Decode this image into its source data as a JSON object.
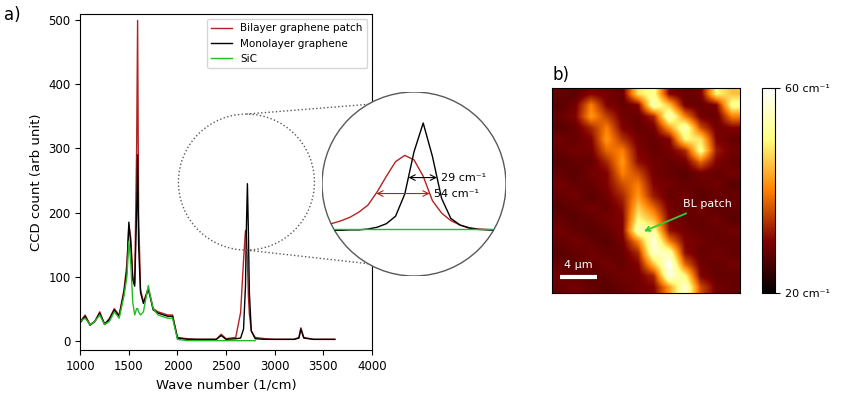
{
  "chart_data": [
    {
      "type": "line",
      "title": "a)",
      "xlabel": "Wave number (1/cm)",
      "ylabel": "CCD count (arb unit)",
      "x": [
        1000,
        1050,
        1100,
        1150,
        1200,
        1250,
        1300,
        1350,
        1400,
        1450,
        1480,
        1500,
        1520,
        1540,
        1560,
        1580,
        1590,
        1600,
        1620,
        1650,
        1700,
        1720,
        1750,
        1800,
        1900,
        1950,
        2000,
        2100,
        2200,
        2300,
        2400,
        2450,
        2500,
        2600,
        2650,
        2680,
        2700,
        2710,
        2720,
        2730,
        2740,
        2760,
        2800,
        2900,
        3000,
        3100,
        3200,
        3250,
        3270,
        3300,
        3400,
        3500,
        3620
      ],
      "xlim": [
        1000,
        4000
      ],
      "xticks": [
        1000,
        1500,
        2000,
        2500,
        3000,
        3500,
        4000
      ],
      "ylim": [
        -15,
        510
      ],
      "yticks": [
        0,
        100,
        200,
        300,
        400,
        500
      ],
      "legend": "upper right",
      "series": [
        {
          "name": "Bilayer graphene patch",
          "color": "#b22222",
          "values": [
            30,
            40,
            25,
            30,
            45,
            25,
            35,
            50,
            40,
            80,
            120,
            180,
            160,
            100,
            90,
            300,
            500,
            200,
            80,
            60,
            82,
            70,
            50,
            45,
            40,
            40,
            5,
            3,
            2,
            2,
            2,
            10,
            3,
            5,
            44,
            125,
            172,
            162,
            125,
            70,
            42,
            15,
            5,
            3,
            2,
            2,
            2,
            5,
            20,
            5,
            2,
            2,
            2
          ]
        },
        {
          "name": "Monolayer graphene",
          "color": "#000000",
          "values": [
            28,
            38,
            24,
            30,
            43,
            26,
            33,
            48,
            38,
            75,
            110,
            185,
            150,
            95,
            85,
            200,
            290,
            150,
            75,
            58,
            80,
            68,
            48,
            43,
            38,
            38,
            4,
            2,
            2,
            2,
            2,
            8,
            2,
            3,
            4,
            18,
            85,
            180,
            245,
            170,
            75,
            15,
            3,
            2,
            2,
            2,
            2,
            4,
            18,
            4,
            2,
            2,
            2
          ]
        },
        {
          "name": "SiC",
          "color": "#22bb22",
          "values": [
            30,
            35,
            25,
            30,
            40,
            25,
            30,
            45,
            35,
            70,
            100,
            155,
            120,
            60,
            40,
            50,
            50,
            45,
            40,
            45,
            86,
            70,
            50,
            40,
            35,
            35,
            2,
            0,
            0,
            0,
            0,
            0,
            0,
            0,
            0,
            0,
            0,
            0,
            0,
            0,
            0,
            0,
            0,
            null,
            null,
            null,
            null,
            null,
            null,
            null,
            null,
            null,
            null
          ]
        }
      ]
    },
    {
      "type": "line",
      "tick_labels": false,
      "x": [
        2600,
        2610,
        2620,
        2630,
        2640,
        2650,
        2660,
        2670,
        2680,
        2690,
        2700,
        2710,
        2720,
        2730,
        2740,
        2750,
        2760,
        2770,
        2780,
        2790,
        2800,
        2810,
        2820
      ],
      "xlim": [
        2610,
        2810
      ],
      "ylim": [
        -100,
        315
      ],
      "series": [
        {
          "name": "Bilayer graphene patch",
          "color": "#b22222",
          "values": [
            10,
            13,
            18,
            24,
            32,
            44,
            60,
            90,
            125,
            158,
            172,
            162,
            125,
            70,
            42,
            25,
            15,
            9,
            6,
            5,
            4,
            3,
            3
          ]
        },
        {
          "name": "Monolayer graphene",
          "color": "#000000",
          "values": [
            3,
            3,
            3,
            3,
            4,
            4,
            6,
            10,
            18,
            35,
            85,
            180,
            245,
            170,
            75,
            30,
            15,
            8,
            5,
            4,
            3,
            2,
            2
          ]
        },
        {
          "name": "SiC",
          "color": "#22bb22",
          "values": [
            5,
            5,
            5,
            5,
            5,
            5,
            5,
            5,
            5,
            5,
            5,
            5,
            5,
            5,
            5,
            5,
            5,
            5,
            5,
            5,
            5,
            5,
            5
          ]
        }
      ],
      "annotations": [
        {
          "text": "29 cm⁻¹",
          "series": "Monolayer graphene",
          "x": [
            2704,
            2735
          ],
          "y": 122
        },
        {
          "text": "54 cm⁻¹",
          "series": "Bilayer graphene patch",
          "x": [
            2669,
            2727
          ],
          "y": 86
        }
      ]
    },
    {
      "type": "heatmap",
      "title": "b)",
      "tick_labels": false,
      "xlim": [
        0,
        20
      ],
      "ylim": [
        22,
        0
      ],
      "cells": [
        [
          28,
          27,
          30,
          29,
          28,
          48,
          52,
          30,
          28,
          29,
          50,
          45
        ],
        [
          27,
          29,
          40,
          30,
          28,
          30,
          55,
          45,
          29,
          28,
          30,
          52
        ],
        [
          28,
          30,
          42,
          35,
          29,
          28,
          33,
          56,
          40,
          29,
          28,
          40
        ],
        [
          27,
          28,
          33,
          40,
          30,
          28,
          29,
          42,
          55,
          36,
          29,
          30
        ],
        [
          29,
          28,
          30,
          42,
          34,
          29,
          28,
          30,
          50,
          48,
          30,
          28
        ],
        [
          28,
          29,
          29,
          38,
          40,
          30,
          28,
          29,
          33,
          52,
          32,
          29
        ],
        [
          27,
          28,
          28,
          33,
          42,
          31,
          29,
          28,
          29,
          38,
          30,
          28
        ],
        [
          28,
          27,
          29,
          30,
          40,
          36,
          29,
          28,
          27,
          29,
          28,
          29
        ],
        [
          29,
          28,
          28,
          30,
          36,
          40,
          30,
          29,
          28,
          28,
          29,
          27
        ],
        [
          28,
          29,
          27,
          29,
          33,
          42,
          32,
          28,
          29,
          27,
          28,
          28
        ],
        [
          27,
          28,
          29,
          28,
          31,
          46,
          38,
          29,
          28,
          29,
          27,
          28
        ],
        [
          28,
          27,
          28,
          29,
          30,
          50,
          44,
          30,
          28,
          28,
          29,
          27
        ],
        [
          29,
          28,
          27,
          28,
          30,
          55,
          52,
          31,
          29,
          28,
          28,
          29
        ],
        [
          28,
          29,
          28,
          27,
          29,
          40,
          58,
          40,
          30,
          29,
          28,
          28
        ],
        [
          27,
          28,
          29,
          28,
          28,
          33,
          56,
          54,
          31,
          28,
          29,
          28
        ],
        [
          28,
          27,
          28,
          29,
          28,
          30,
          45,
          60,
          38,
          29,
          28,
          29
        ],
        [
          29,
          28,
          27,
          28,
          29,
          29,
          33,
          58,
          50,
          30,
          28,
          28
        ],
        [
          28,
          29,
          28,
          27,
          28,
          29,
          30,
          42,
          57,
          36,
          29,
          28
        ]
      ],
      "colorbar_range": [
        20,
        60
      ],
      "colorbar_ticks": [
        {
          "value": 20,
          "label": "20 cm⁻¹"
        },
        {
          "value": 60,
          "label": "60 cm⁻¹"
        }
      ],
      "scale_bar": {
        "label": "4 µm",
        "length": 4
      },
      "annotations": [
        {
          "text": "BL patch",
          "xy": [
            9.5,
            15.5
          ],
          "text_xy": [
            16.5,
            12.5
          ]
        }
      ]
    }
  ]
}
